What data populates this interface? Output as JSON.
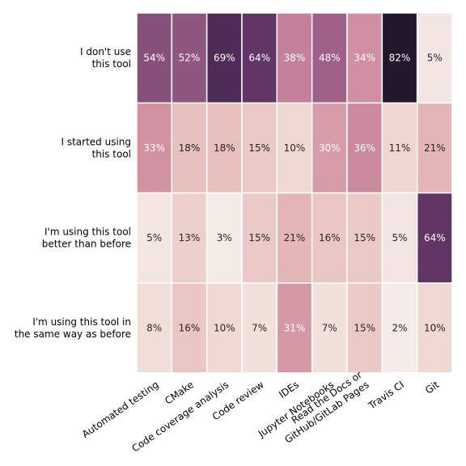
{
  "chart_data": {
    "type": "heatmap",
    "rows": [
      "I don't use\nthis tool",
      "I started using\nthis tool",
      "I'm using this tool\nbetter than before",
      "I'm using this tool in\nthe same way as before"
    ],
    "columns": [
      "Automated testing",
      "CMake",
      "Code coverage analysis",
      "Code review",
      "IDEs",
      "Jupyter Notebooks",
      "Read the Docs or\nGitHub/GitLab Pages",
      "Travis CI",
      "Git"
    ],
    "values": [
      [
        54,
        52,
        69,
        64,
        38,
        48,
        34,
        82,
        5
      ],
      [
        33,
        18,
        18,
        15,
        10,
        30,
        36,
        11,
        21
      ],
      [
        5,
        13,
        3,
        15,
        21,
        16,
        15,
        5,
        64
      ],
      [
        8,
        16,
        10,
        7,
        31,
        7,
        15,
        2,
        10
      ]
    ],
    "value_suffix": "%",
    "colormap": "cubehelix light-to-dark",
    "colorbar": false
  }
}
